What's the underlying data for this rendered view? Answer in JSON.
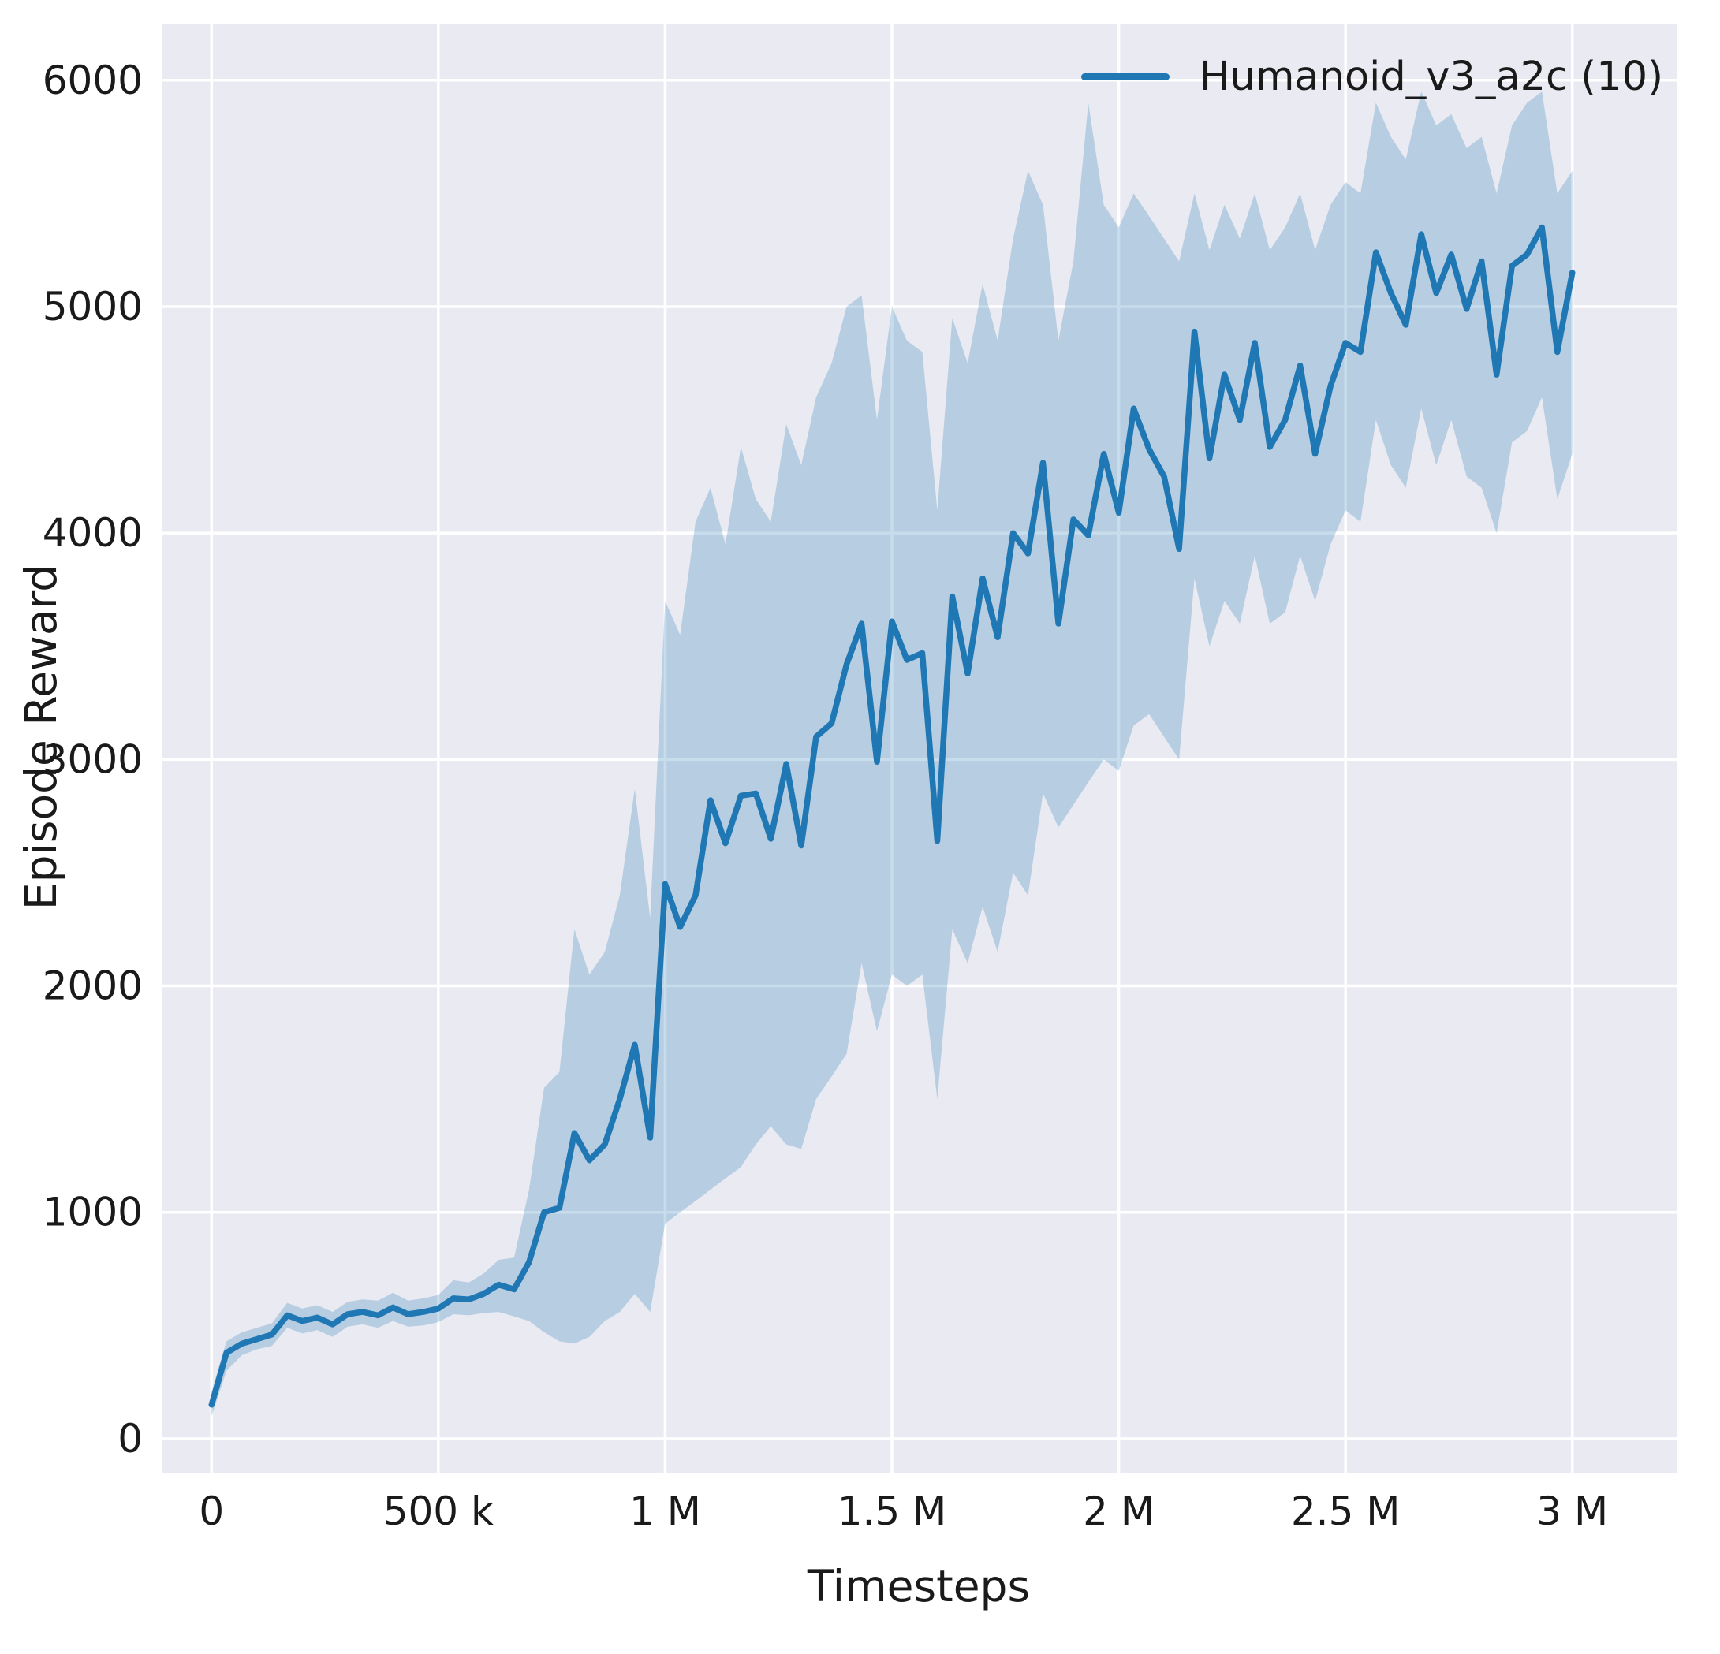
{
  "chart_data": {
    "type": "line",
    "title": "",
    "xlabel": "Timesteps",
    "ylabel": "Episode Reward",
    "xlim": [
      -110000,
      3230000
    ],
    "ylim": [
      -150,
      6250
    ],
    "grid": true,
    "plot_bg": "#eaeaf2",
    "grid_color": "#ffffff",
    "band_opacity": 0.25,
    "legend_position": "upper right",
    "xticks": {
      "values": [
        0,
        500000,
        1000000,
        1500000,
        2000000,
        2500000,
        3000000
      ],
      "labels": [
        "0",
        "500 k",
        "1 M",
        "1.5 M",
        "2 M",
        "2.5 M",
        "3 M"
      ]
    },
    "yticks": {
      "values": [
        0,
        1000,
        2000,
        3000,
        4000,
        5000,
        6000
      ],
      "labels": [
        "0",
        "1000",
        "2000",
        "3000",
        "4000",
        "5000",
        "6000"
      ]
    },
    "series": [
      {
        "name": "Humanoid_v3_a2c (10)",
        "color": "#1f77b4",
        "x": [
          0,
          33000,
          67000,
          100000,
          133000,
          167000,
          200000,
          233000,
          267000,
          300000,
          333000,
          367000,
          400000,
          433000,
          467000,
          500000,
          533000,
          567000,
          600000,
          633000,
          667000,
          700000,
          733000,
          767000,
          800000,
          833000,
          867000,
          900000,
          933000,
          967000,
          1000000,
          1033000,
          1067000,
          1100000,
          1133000,
          1167000,
          1200000,
          1233000,
          1267000,
          1300000,
          1333000,
          1367000,
          1400000,
          1433000,
          1467000,
          1500000,
          1533000,
          1567000,
          1600000,
          1633000,
          1667000,
          1700000,
          1733000,
          1767000,
          1800000,
          1833000,
          1867000,
          1900000,
          1933000,
          1967000,
          2000000,
          2033000,
          2067000,
          2100000,
          2133000,
          2167000,
          2200000,
          2233000,
          2267000,
          2300000,
          2333000,
          2367000,
          2400000,
          2433000,
          2467000,
          2500000,
          2533000,
          2567000,
          2600000,
          2633000,
          2667000,
          2700000,
          2733000,
          2767000,
          2800000,
          2833000,
          2867000,
          2900000,
          2933000,
          2967000,
          3000000
        ],
        "mean": [
          150,
          380,
          420,
          440,
          460,
          545,
          520,
          535,
          505,
          550,
          560,
          545,
          580,
          550,
          560,
          575,
          620,
          615,
          640,
          680,
          660,
          780,
          1000,
          1020,
          1350,
          1230,
          1300,
          1500,
          1740,
          1330,
          2450,
          2260,
          2400,
          2820,
          2630,
          2840,
          2850,
          2650,
          2980,
          2620,
          3100,
          3160,
          3420,
          3600,
          2990,
          3610,
          3440,
          3470,
          2640,
          3720,
          3380,
          3800,
          3540,
          4000,
          3910,
          4310,
          3600,
          4060,
          3990,
          4350,
          4090,
          4550,
          4370,
          4250,
          3930,
          4890,
          4330,
          4700,
          4500,
          4840,
          4380,
          4500,
          4740,
          4350,
          4650,
          4840,
          4800,
          5240,
          5060,
          4920,
          5320,
          5060,
          5230,
          4990,
          5200,
          4700,
          5180,
          5230,
          5350,
          4800,
          5150
        ],
        "lo": [
          100,
          300,
          370,
          395,
          410,
          490,
          465,
          480,
          450,
          495,
          505,
          490,
          520,
          495,
          500,
          515,
          550,
          545,
          555,
          560,
          540,
          520,
          470,
          430,
          420,
          450,
          520,
          560,
          640,
          560,
          950,
          1000,
          1050,
          1100,
          1150,
          1200,
          1300,
          1380,
          1300,
          1280,
          1500,
          1600,
          1700,
          2100,
          1800,
          2050,
          2000,
          2050,
          1500,
          2250,
          2100,
          2350,
          2150,
          2500,
          2400,
          2850,
          2700,
          2800,
          2900,
          3000,
          2950,
          3150,
          3200,
          3100,
          3000,
          3800,
          3500,
          3700,
          3600,
          3900,
          3600,
          3650,
          3900,
          3700,
          3950,
          4100,
          4050,
          4500,
          4300,
          4200,
          4550,
          4300,
          4500,
          4250,
          4200,
          4000,
          4400,
          4450,
          4600,
          4150,
          4350
        ],
        "hi": [
          210,
          430,
          470,
          490,
          510,
          600,
          575,
          590,
          560,
          605,
          615,
          610,
          645,
          610,
          620,
          635,
          700,
          690,
          730,
          790,
          800,
          1100,
          1550,
          1620,
          2250,
          2050,
          2150,
          2400,
          2870,
          2300,
          3700,
          3550,
          4050,
          4200,
          3950,
          4380,
          4150,
          4050,
          4480,
          4300,
          4600,
          4750,
          5000,
          5050,
          4500,
          5000,
          4850,
          4800,
          4100,
          4950,
          4750,
          5100,
          4850,
          5300,
          5600,
          5450,
          4850,
          5200,
          5900,
          5450,
          5350,
          5500,
          5400,
          5300,
          5200,
          5500,
          5250,
          5450,
          5300,
          5500,
          5250,
          5350,
          5500,
          5250,
          5450,
          5550,
          5500,
          5900,
          5750,
          5650,
          5950,
          5800,
          5850,
          5700,
          5750,
          5500,
          5800,
          5900,
          5950,
          5500,
          5600
        ]
      }
    ]
  }
}
